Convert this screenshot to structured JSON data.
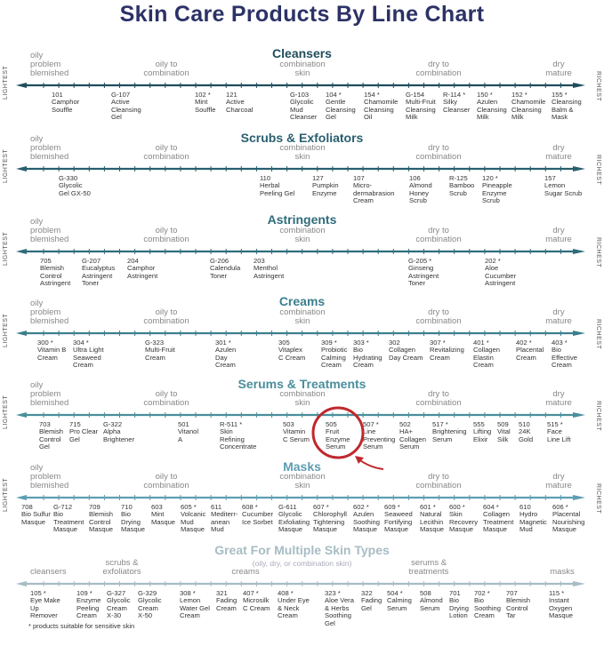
{
  "title": "Skin Care Products By Line Chart",
  "axis_ends": {
    "left": "LIGHTEST",
    "right": "RICHEST"
  },
  "skin_scale": [
    [
      "oily",
      "problem",
      "blemished"
    ],
    [
      "oily to",
      "combination"
    ],
    [
      "combination",
      "skin"
    ],
    [
      "dry to",
      "combination"
    ],
    [
      "dry",
      "mature"
    ]
  ],
  "colors": {
    "title": "#2c3266",
    "highlight_circle": "#c0282d",
    "sections": [
      "#1e4d5c",
      "#285f6e",
      "#2f6c7b",
      "#3b7f8d",
      "#4a8e9c",
      "#5e9db2",
      "#a7bcc4"
    ]
  },
  "chart_data": {
    "type": "line-scale",
    "title": "Skin Care Products By Line Chart",
    "scale": "lightest to richest",
    "sections": [
      {
        "title": "Cleansers",
        "products": [
          [
            "101",
            "Camphor",
            "Souffle"
          ],
          [
            "G-107",
            "Active",
            "Cleansing",
            "Gel"
          ],
          [
            "102 *",
            "Mint",
            "Souffle"
          ],
          [
            "121",
            "Active",
            "Charcoal"
          ],
          [
            "G-103",
            "Glycolic",
            "Mud",
            "Cleanser"
          ],
          [
            "104 *",
            "Gentle",
            "Cleansing",
            "Gel"
          ],
          [
            "154 *",
            "Chamomile",
            "Cleansing",
            "Oil"
          ],
          [
            "G-154",
            "Multi-Fruit",
            "Cleansing",
            "Milk"
          ],
          [
            "R-114 *",
            "Silky",
            "Cleanser"
          ],
          [
            "150 *",
            "Azulen",
            "Cleansing",
            "Milk"
          ],
          [
            "152 *",
            "Chamomile",
            "Cleansing",
            "Milk"
          ],
          [
            "155 *",
            "Cleansing",
            "Balm &",
            "Mask"
          ]
        ]
      },
      {
        "title": "Scrubs & Exfoliators",
        "products": [
          [
            "G-330",
            "Glycolic",
            "Gel GX-50"
          ],
          [
            "110",
            "Herbal",
            "Peeling Gel"
          ],
          [
            "127",
            "Pumpkin",
            "Enzyme"
          ],
          [
            "107",
            "Micro-",
            "dermabrasion",
            "Cream"
          ],
          [
            "106",
            "Almond",
            "Honey",
            "Scrub"
          ],
          [
            "R-125",
            "Bamboo",
            "Scrub"
          ],
          [
            "120 *",
            "Pineapple",
            "Enzyme",
            "Scrub"
          ],
          [
            "157",
            "Lemon",
            "Sugar Scrub"
          ]
        ]
      },
      {
        "title": "Astringents",
        "products": [
          [
            "705",
            "Blemish",
            "Control",
            "Astringent"
          ],
          [
            "G-207",
            "Eucalyptus",
            "Astringent",
            "Toner"
          ],
          [
            "204",
            "Camphor",
            "Astringent"
          ],
          [
            "G-206",
            "Calendula",
            "Toner"
          ],
          [
            "203",
            "Menthol",
            "Astringent"
          ],
          [
            "G-205 *",
            "Ginseng",
            "Astringent",
            "Toner"
          ],
          [
            "202 *",
            "Aloe",
            "Cucumber",
            "Astringent"
          ]
        ]
      },
      {
        "title": "Creams",
        "products": [
          [
            "300 *",
            "Vitamin B",
            "Cream"
          ],
          [
            "304 *",
            "Ultra Light",
            "Seaweed",
            "Cream"
          ],
          [
            "G-323",
            "Multi-Fruit",
            "Cream"
          ],
          [
            "301 *",
            "Azulen",
            "Day",
            "Cream"
          ],
          [
            "305",
            "Vitaplex",
            "C Cream"
          ],
          [
            "309 *",
            "Probiotic",
            "Calming",
            "Cream"
          ],
          [
            "303 *",
            "Bio",
            "Hydrating",
            "Cream"
          ],
          [
            "302",
            "Collagen",
            "Day Cream"
          ],
          [
            "307 *",
            "Revitalizing",
            "Cream"
          ],
          [
            "401 *",
            "Collagen",
            "Elastin",
            "Cream"
          ],
          [
            "402 *",
            "Placental",
            "Cream"
          ],
          [
            "403 *",
            "Bio",
            "Effective",
            "Cream"
          ]
        ]
      },
      {
        "title": "Serums & Treatments",
        "products": [
          [
            "703",
            "Blemish",
            "Control",
            "Gel"
          ],
          [
            "715",
            "Pro Clear",
            "Gel"
          ],
          [
            "G-322",
            "Alpha",
            "Brightener"
          ],
          [
            "501",
            "Vitanol",
            "A"
          ],
          [
            "R-511 *",
            "Skin",
            "Refining",
            "Concentrate"
          ],
          [
            "503",
            "Vitamin",
            "C Serum"
          ],
          [
            "505",
            "Fruit",
            "Enzyme",
            "Serum"
          ],
          [
            "507 *",
            "Line",
            "Preventing",
            "Serum"
          ],
          [
            "502",
            "HA+",
            "Collagen",
            "Serum"
          ],
          [
            "517 *",
            "Brightening",
            "Serum"
          ],
          [
            "555",
            "Lifting",
            "Elixir"
          ],
          [
            "509",
            "Vital",
            "Silk"
          ],
          [
            "510",
            "24K",
            "Gold"
          ],
          [
            "515 *",
            "Face",
            "Line Lift"
          ]
        ],
        "highlighted": "505"
      },
      {
        "title": "Masks",
        "products": [
          [
            "708",
            "Bio Sulfur",
            "Masque"
          ],
          [
            "G-712",
            "Bio",
            "Treatment",
            "Masque"
          ],
          [
            "709",
            "Blemish",
            "Control",
            "Masque"
          ],
          [
            "710",
            "Bio",
            "Drying",
            "Masque"
          ],
          [
            "603",
            "Mint",
            "Masque"
          ],
          [
            "605 *",
            "Volcanic",
            "Mud",
            "Masque"
          ],
          [
            "611",
            "Mediterr-",
            "anean",
            "Mud"
          ],
          [
            "608 *",
            "Cucumber",
            "Ice Sorbet"
          ],
          [
            "G-611",
            "Glycolic",
            "Exfoliating",
            "Masque"
          ],
          [
            "607 *",
            "Chlorophyll",
            "Tightening",
            "Masque"
          ],
          [
            "602 *",
            "Azulen",
            "Soothing",
            "Masque"
          ],
          [
            "609 *",
            "Seaweed",
            "Fortifying",
            "Masque"
          ],
          [
            "601 *",
            "Natural",
            "Lecithin",
            "Masque"
          ],
          [
            "600 *",
            "Skin",
            "Recovery",
            "Masque"
          ],
          [
            "604 *",
            "Collagen",
            "Treatment",
            "Masque"
          ],
          [
            "610",
            "Hydro",
            "Magnetic",
            "Mud"
          ],
          [
            "606 *",
            "Placental",
            "Nourishing",
            "Masque"
          ]
        ]
      },
      {
        "title": "Great For Multiple Skin Types",
        "subtitle": "(oily, dry, or combination skin)",
        "categories": [
          [
            "cleansers"
          ],
          [
            "scrubs &",
            "exfoliators"
          ],
          [
            "creams"
          ],
          [
            "serums &",
            "treatments"
          ],
          [
            "masks"
          ]
        ],
        "products": [
          [
            "105 *",
            "Eye Make",
            "Up",
            "Remover"
          ],
          [
            "109 *",
            "Enzyme",
            "Peeling",
            "Cream"
          ],
          [
            "G-327",
            "Glycolic",
            "Cream",
            "X-30"
          ],
          [
            "G-329",
            "Glycolic",
            "Cream",
            "X-50"
          ],
          [
            "308 *",
            "Lemon",
            "Water Gel",
            "Cream"
          ],
          [
            "321",
            "Fading",
            "Cream"
          ],
          [
            "407 *",
            "Microsilk",
            "C Cream"
          ],
          [
            "408 *",
            "Under Eye",
            "& Neck",
            "Cream"
          ],
          [
            "323 *",
            "Aloe Vera",
            "& Herbs",
            "Soothing",
            "Gel"
          ],
          [
            "322",
            "Fading",
            "Gel"
          ],
          [
            "504 *",
            "Calming",
            "Serum"
          ],
          [
            "508",
            "Almond",
            "Serum"
          ],
          [
            "701",
            "Bio",
            "Drying",
            "Lotion"
          ],
          [
            "702 *",
            "Bio",
            "Soothing",
            "Cream"
          ],
          [
            "707",
            "Blemish",
            "Control",
            "Tar"
          ],
          [
            "115 *",
            "Instant",
            "Oxygen",
            "Masque"
          ]
        ]
      }
    ]
  },
  "footnote": "* products suitable for sensitive skin"
}
